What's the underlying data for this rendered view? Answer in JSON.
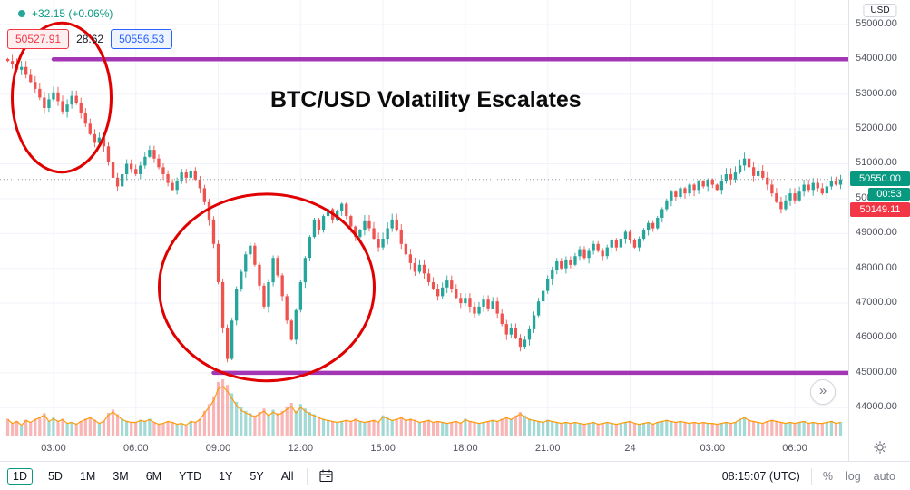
{
  "legend": {
    "change_text": "+32.15 (+0.06%)"
  },
  "order_panel": {
    "sell_price": "50527.91",
    "spread": "28.62",
    "buy_price": "50556.53"
  },
  "title_annotation": "BTC/USD Volatility Escalates",
  "price_axis": {
    "currency": "USD",
    "badge_price": "50550.00",
    "countdown": "00:53",
    "secondary_badge_price": "50149.11"
  },
  "toolbar": {
    "ranges": [
      "1D",
      "5D",
      "1M",
      "3M",
      "6M",
      "YTD",
      "1Y",
      "5Y",
      "All"
    ],
    "active_range": "1D",
    "clock": "08:15:07 (UTC)",
    "scale_buttons": [
      "%",
      "log",
      "auto"
    ]
  },
  "chart_data": {
    "type": "candlestick",
    "symbol": "BTC/USD",
    "title": "BTC/USD Volatility Escalates",
    "ylim": [
      43200,
      55700
    ],
    "current_price": 50550.0,
    "grid_prices": [
      55000,
      54000,
      53000,
      52000,
      51000,
      50000,
      49000,
      48000,
      47000,
      46000,
      45000,
      44000
    ],
    "x_ticks": [
      {
        "index": 10,
        "text": "03:00"
      },
      {
        "index": 28,
        "text": "06:00"
      },
      {
        "index": 46,
        "text": "09:00"
      },
      {
        "index": 64,
        "text": "12:00"
      },
      {
        "index": 82,
        "text": "15:00"
      },
      {
        "index": 100,
        "text": "18:00"
      },
      {
        "index": 118,
        "text": "21:00"
      },
      {
        "index": 136,
        "text": "24"
      },
      {
        "index": 154,
        "text": "03:00"
      },
      {
        "index": 172,
        "text": "06:00"
      }
    ],
    "closes": [
      53950,
      53850,
      53700,
      53780,
      53550,
      53350,
      53150,
      52900,
      52600,
      52850,
      53050,
      52800,
      52500,
      52700,
      52950,
      52750,
      52450,
      52150,
      51850,
      51600,
      51750,
      51500,
      51050,
      50600,
      50350,
      50700,
      51000,
      50850,
      50700,
      50950,
      51200,
      51400,
      51150,
      50900,
      50700,
      50450,
      50250,
      50500,
      50750,
      50600,
      50800,
      50550,
      50300,
      49900,
      49400,
      48700,
      47600,
      46300,
      45400,
      46500,
      47400,
      47900,
      48400,
      48650,
      48100,
      47500,
      46900,
      47600,
      48300,
      47800,
      47200,
      46500,
      45950,
      46800,
      47600,
      48300,
      48900,
      49400,
      49100,
      49500,
      49700,
      49400,
      49650,
      49850,
      49500,
      49200,
      48900,
      49100,
      49350,
      49150,
      48850,
      48600,
      48850,
      49150,
      49400,
      49100,
      48700,
      48400,
      48150,
      47900,
      48100,
      47850,
      47600,
      47400,
      47200,
      47450,
      47650,
      47400,
      47150,
      47000,
      47150,
      46900,
      46700,
      46900,
      47100,
      46850,
      47050,
      46700,
      46400,
      46100,
      46300,
      46000,
      45750,
      45950,
      46250,
      46650,
      47050,
      47350,
      47700,
      47950,
      48200,
      48000,
      48250,
      48100,
      48350,
      48550,
      48300,
      48500,
      48700,
      48500,
      48350,
      48600,
      48800,
      48600,
      48850,
      49050,
      48800,
      48600,
      48850,
      49100,
      49300,
      49150,
      49450,
      49700,
      49950,
      50200,
      50050,
      50300,
      50150,
      50400,
      50250,
      50500,
      50350,
      50550,
      50400,
      50250,
      50500,
      50700,
      50550,
      50750,
      50950,
      51150,
      50900,
      50650,
      50800,
      50600,
      50400,
      50150,
      49900,
      49700,
      49950,
      50150,
      49950,
      50200,
      50400,
      50250,
      50450,
      50300,
      50150,
      50350,
      50500,
      50400,
      50550
    ],
    "volumes": [
      30,
      22,
      26,
      18,
      28,
      24,
      30,
      34,
      40,
      26,
      32,
      26,
      30,
      22,
      24,
      20,
      26,
      30,
      34,
      28,
      22,
      26,
      40,
      46,
      38,
      30,
      26,
      24,
      24,
      28,
      26,
      30,
      24,
      20,
      22,
      26,
      24,
      20,
      22,
      18,
      26,
      24,
      30,
      44,
      56,
      70,
      95,
      100,
      90,
      75,
      60,
      50,
      44,
      40,
      36,
      42,
      48,
      38,
      46,
      40,
      44,
      52,
      58,
      44,
      56,
      48,
      42,
      38,
      34,
      30,
      28,
      26,
      24,
      26,
      28,
      26,
      30,
      26,
      24,
      26,
      28,
      24,
      36,
      32,
      28,
      30,
      34,
      28,
      30,
      28,
      24,
      26,
      28,
      24,
      26,
      24,
      22,
      24,
      26,
      22,
      30,
      26,
      24,
      22,
      24,
      26,
      28,
      26,
      30,
      34,
      30,
      36,
      42,
      36,
      30,
      28,
      26,
      24,
      28,
      26,
      24,
      22,
      24,
      22,
      24,
      22,
      20,
      22,
      24,
      20,
      22,
      24,
      22,
      20,
      22,
      24,
      26,
      22,
      20,
      22,
      24,
      20,
      24,
      26,
      28,
      26,
      24,
      26,
      24,
      22,
      24,
      22,
      24,
      22,
      22,
      20,
      22,
      24,
      22,
      24,
      30,
      34,
      28,
      26,
      24,
      22,
      26,
      28,
      26,
      24,
      22,
      24,
      22,
      24,
      26,
      22,
      24,
      22,
      22,
      24,
      26,
      22,
      24
    ],
    "levels": [
      {
        "price": 54000,
        "start_index": 10
      },
      {
        "price": 45000,
        "start_index": 45
      }
    ],
    "ellipses": [
      {
        "cx_index": 11.8,
        "cy_price": 52900,
        "rx_indices": 10.8,
        "ry_price": 2140
      },
      {
        "cx_index": 56.6,
        "cy_price": 47450,
        "rx_indices": 23.5,
        "ry_price": 2680
      }
    ],
    "colors": {
      "up": "#26a69a",
      "down": "#ef5350",
      "volume_ma": "#ff9800",
      "level": "#9c27b0",
      "ellipse": "#e00000"
    }
  }
}
